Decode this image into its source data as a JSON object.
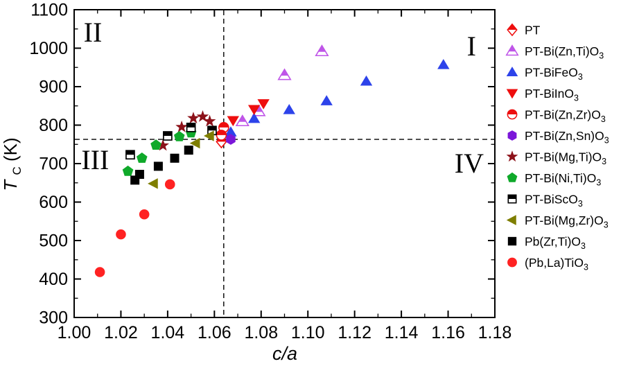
{
  "chart_data": {
    "type": "scatter",
    "title": "",
    "xlabel": "c/a",
    "ylabel": {
      "main": "T",
      "sub": "C",
      "unit": " (K)"
    },
    "xlim": [
      1.0,
      1.18
    ],
    "ylim": [
      300,
      1100
    ],
    "x_tick_labels": [
      "1.00",
      "1.02",
      "1.04",
      "1.06",
      "1.08",
      "1.10",
      "1.12",
      "1.14",
      "1.16",
      "1.18"
    ],
    "y_tick_labels": [
      "300",
      "400",
      "500",
      "600",
      "700",
      "800",
      "900",
      "1000",
      "1100"
    ],
    "x_minor_step": 0.01,
    "y_minor_step": 50,
    "grid": false,
    "legend_position": "right-outside",
    "reference_lines": [
      {
        "orientation": "vertical",
        "x": 1.064,
        "style": "dashed"
      },
      {
        "orientation": "horizontal",
        "y": 763,
        "style": "dashed"
      }
    ],
    "quadrant_labels": [
      {
        "text": "I",
        "x": 1.17,
        "y": 1006
      },
      {
        "text": "II",
        "x": 1.008,
        "y": 1042
      },
      {
        "text": "III",
        "x": 1.009,
        "y": 711
      },
      {
        "text": "IV",
        "x": 1.169,
        "y": 702
      }
    ],
    "series": [
      {
        "name": "PT",
        "marker": "half-diamond",
        "color": "#ee0e0e",
        "points": [
          [
            1.063,
            757
          ]
        ]
      },
      {
        "name": "PT-Bi(Zn,Ti)O₃",
        "marker": "half-triangle-up",
        "color": "#bf55e8",
        "points": [
          [
            1.072,
            810
          ],
          [
            1.079,
            836
          ],
          [
            1.09,
            930
          ],
          [
            1.106,
            992
          ]
        ]
      },
      {
        "name": "PT-BiFeO₃",
        "marker": "triangle-up",
        "color": "#2d43ea",
        "points": [
          [
            1.067,
            782
          ],
          [
            1.077,
            817
          ],
          [
            1.092,
            840
          ],
          [
            1.108,
            863
          ],
          [
            1.125,
            914
          ],
          [
            1.158,
            957
          ]
        ]
      },
      {
        "name": "PT-BiInO₃",
        "marker": "triangle-down",
        "color": "#ee0e0e",
        "points": [
          [
            1.068,
            812
          ],
          [
            1.077,
            841
          ],
          [
            1.081,
            856
          ]
        ]
      },
      {
        "name": "PT-Bi(Zn,Zr)O₃",
        "marker": "half-circle",
        "color": "#ee0e0e",
        "points": [
          [
            1.064,
            794
          ],
          [
            1.063,
            774
          ]
        ]
      },
      {
        "name": "PT-Bi(Zn,Sn)O₃",
        "marker": "hexagon",
        "color": "#7b16d9",
        "points": [
          [
            1.067,
            763
          ]
        ]
      },
      {
        "name": "PT-Bi(Mg,Ti)O₃",
        "marker": "star",
        "color": "#8c1119",
        "points": [
          [
            1.038,
            747
          ],
          [
            1.046,
            795
          ],
          [
            1.051,
            818
          ],
          [
            1.055,
            822
          ],
          [
            1.058,
            810
          ]
        ]
      },
      {
        "name": "PT-Bi(Ni,Ti)O₃",
        "marker": "pentagon",
        "color": "#0fa92a",
        "points": [
          [
            1.023,
            680
          ],
          [
            1.029,
            714
          ],
          [
            1.035,
            748
          ],
          [
            1.045,
            770
          ],
          [
            1.05,
            780
          ]
        ]
      },
      {
        "name": "PT-BiScO₃",
        "marker": "half-square",
        "color": "#000000",
        "points": [
          [
            1.024,
            723
          ],
          [
            1.04,
            772
          ],
          [
            1.05,
            794
          ],
          [
            1.059,
            786
          ]
        ]
      },
      {
        "name": "PT-Bi(Mg,Zr)O₃",
        "marker": "triangle-left",
        "color": "#7e7e00",
        "points": [
          [
            1.034,
            648
          ],
          [
            1.052,
            753
          ],
          [
            1.058,
            772
          ]
        ]
      },
      {
        "name": "Pb(Zr,Ti)O₃",
        "marker": "square",
        "color": "#000000",
        "points": [
          [
            1.026,
            657
          ],
          [
            1.028,
            672
          ],
          [
            1.036,
            693
          ],
          [
            1.043,
            714
          ],
          [
            1.049,
            735
          ]
        ]
      },
      {
        "name": "(Pb,La)TiO₃",
        "marker": "circle",
        "color": "#ff2222",
        "points": [
          [
            1.011,
            418
          ],
          [
            1.02,
            516
          ],
          [
            1.03,
            568
          ],
          [
            1.041,
            646
          ]
        ]
      }
    ]
  }
}
